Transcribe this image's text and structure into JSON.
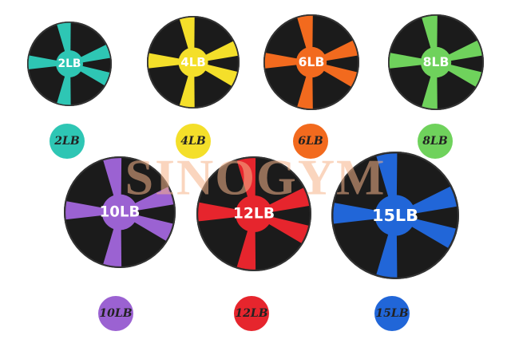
{
  "watermark": "SINOGYM",
  "items": [
    {
      "label": "2LB",
      "color": "#2ec6b4"
    },
    {
      "label": "4LB",
      "color": "#f4df2a"
    },
    {
      "label": "6LB",
      "color": "#f26a1e"
    },
    {
      "label": "8LB",
      "color": "#6fd25c"
    },
    {
      "label": "10LB",
      "color": "#9b62d2"
    },
    {
      "label": "12LB",
      "color": "#e6252d"
    },
    {
      "label": "15LB",
      "color": "#2166d8"
    }
  ]
}
